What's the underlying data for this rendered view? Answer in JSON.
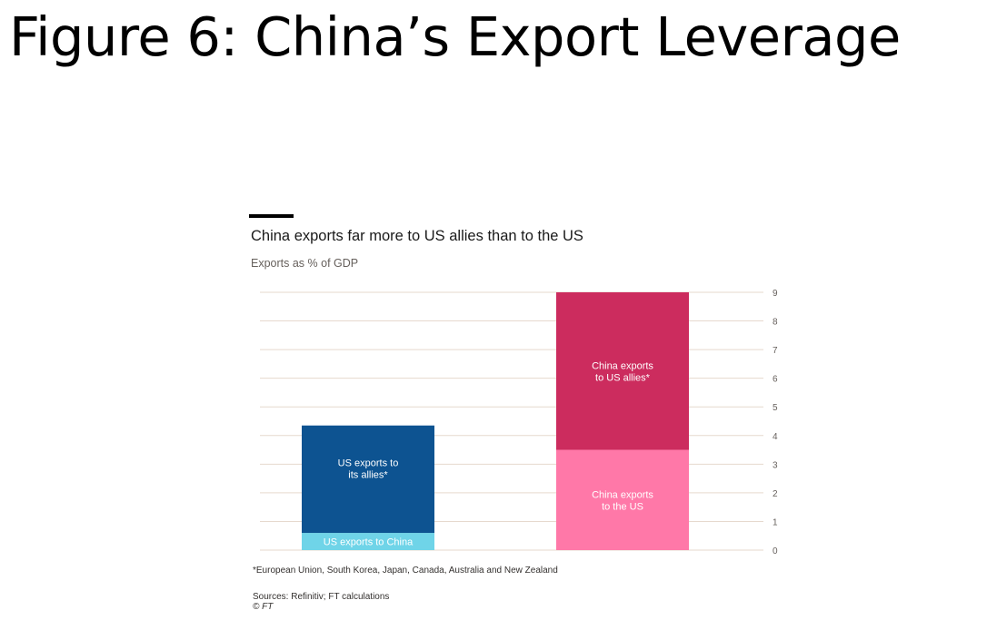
{
  "slide": {
    "title": "Figure 6: China’s Export Leverage"
  },
  "chart_data": {
    "type": "bar",
    "stacked": true,
    "title": "China exports far more to US allies than to the US",
    "subtitle": "Exports as % of GDP",
    "ylim": [
      0,
      9
    ],
    "yticks": [
      "0",
      "1",
      "2",
      "3",
      "4",
      "5",
      "6",
      "7",
      "8",
      "9"
    ],
    "y_axis_position": "right",
    "grid": true,
    "legend": "inline labels",
    "categories": [
      "",
      ""
    ],
    "bars": [
      {
        "segments": [
          {
            "label": "US exports to China",
            "value": 0.6,
            "color": "#6fd4e8",
            "text_color": "#ffffff"
          },
          {
            "label": "US exports to its allies*",
            "value": 3.75,
            "color": "#0d5391",
            "text_color": "#ffffff"
          }
        ]
      },
      {
        "segments": [
          {
            "label": "China exports to the US",
            "value": 3.5,
            "color": "#ff78a8",
            "text_color": "#ffffff"
          },
          {
            "label": "China exports to US allies*",
            "value": 5.5,
            "color": "#cc2c5e",
            "text_color": "#ffffff"
          }
        ]
      }
    ],
    "footnote": "*European Union, South Korea, Japan, Canada, Australia and New Zealand",
    "source": "Sources: Refinitiv; FT calculations",
    "copyright": "© FT",
    "colors": {
      "grid": "#e6d9ce",
      "tick_text": "#66605c"
    }
  }
}
